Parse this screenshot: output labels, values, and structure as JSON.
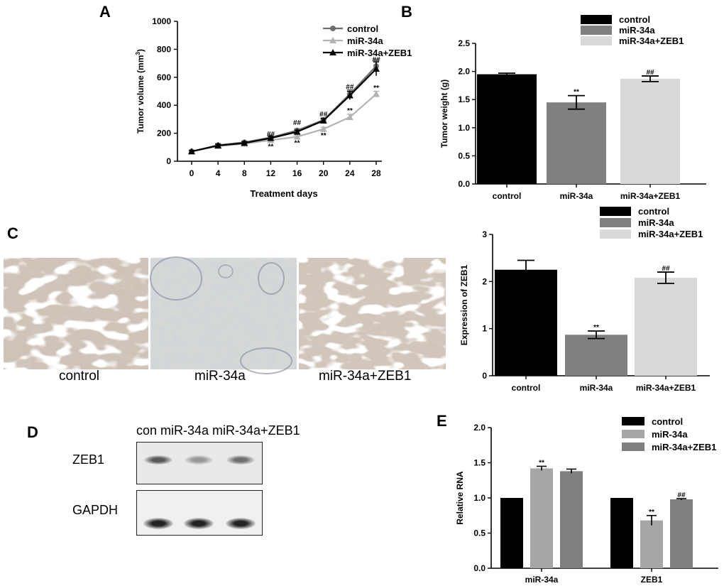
{
  "panels": {
    "a": "A",
    "b": "B",
    "c": "C",
    "d": "D",
    "e": "E"
  },
  "colors": {
    "control_line": "#6e6e6e",
    "mir_line": "#b3b3b3",
    "zeb_line": "#000000",
    "bar_control": "#000000",
    "bar_mir": "#808080",
    "bar_zeb": "#d9d9d9",
    "e_mir": "#a6a6a6",
    "e_zeb": "#7f7f7f"
  },
  "ihc": {
    "captions": [
      "control",
      "miR-34a",
      "miR-34a+ZEB1"
    ]
  },
  "blot": {
    "header": "con miR-34a miR-34a+ZEB1",
    "rows": [
      "ZEB1",
      "GAPDH"
    ],
    "zeb1_intensity": [
      1.0,
      0.45,
      0.8
    ],
    "gapdh_intensity": [
      1.0,
      1.0,
      1.0
    ]
  },
  "chart_data": [
    {
      "panel": "A",
      "type": "line",
      "xlabel": "Treatment days",
      "ylabel": "Tumor volume (mm3)",
      "ylabel_main": "Tumor volume (mm",
      "ylabel_sup": "3",
      "ylabel_close": ")",
      "x": [
        0,
        4,
        8,
        12,
        16,
        20,
        24,
        28
      ],
      "xticks": [
        "0",
        "4",
        "8",
        "12",
        "16",
        "20",
        "24",
        "28"
      ],
      "ylim": [
        0,
        1000
      ],
      "yticks": [
        "0",
        "200",
        "400",
        "600",
        "800",
        "1000"
      ],
      "legend": "top-right",
      "series": [
        {
          "name": "control",
          "marker": "circle",
          "values": [
            70,
            115,
            135,
            170,
            220,
            295,
            480,
            680
          ],
          "err": [
            8,
            10,
            10,
            12,
            12,
            15,
            30,
            45
          ]
        },
        {
          "name": "miR-34a",
          "marker": "triangle",
          "values": [
            70,
            108,
            125,
            150,
            175,
            230,
            315,
            480
          ],
          "err": [
            8,
            8,
            10,
            10,
            10,
            12,
            20,
            20
          ]
        },
        {
          "name": "miR-34a+ZEB1",
          "marker": "triangle",
          "values": [
            70,
            112,
            130,
            165,
            210,
            290,
            470,
            660
          ],
          "err": [
            8,
            10,
            10,
            12,
            12,
            15,
            30,
            50
          ]
        }
      ],
      "annotations": [
        {
          "text": "##",
          "x": 12,
          "y": 198
        },
        {
          "text": "##",
          "x": 16,
          "y": 280
        },
        {
          "text": "##",
          "x": 20,
          "y": 340
        },
        {
          "text": "##",
          "x": 24,
          "y": 535
        },
        {
          "text": "##",
          "x": 28,
          "y": 730
        },
        {
          "text": "**",
          "x": 12,
          "y": 108
        },
        {
          "text": "**",
          "x": 16,
          "y": 135
        },
        {
          "text": "**",
          "x": 20,
          "y": 188
        },
        {
          "text": "**",
          "x": 24,
          "y": 365
        },
        {
          "text": "**",
          "x": 28,
          "y": 528
        }
      ]
    },
    {
      "panel": "B",
      "type": "bar",
      "ylabel": "Tumor weight (g)",
      "categories": [
        "control",
        "miR-34a",
        "miR-34a+ZEB1"
      ],
      "values": [
        1.95,
        1.45,
        1.87
      ],
      "err": [
        0.02,
        0.12,
        0.05
      ],
      "ylim": [
        0,
        2.5
      ],
      "yticks": [
        "0.0",
        "0.5",
        "1.0",
        "1.5",
        "2.0",
        "2.5"
      ],
      "legend": "top-right",
      "legend_entries": [
        "control",
        "miR-34a",
        "miR-34a+ZEB1"
      ],
      "annotations": [
        "",
        "**",
        "##"
      ]
    },
    {
      "panel": "C",
      "type": "bar",
      "ylabel": "Expression of ZEB1",
      "categories": [
        "control",
        "miR-34a",
        "miR-34a+ZEB1"
      ],
      "values": [
        2.25,
        0.87,
        2.08
      ],
      "err": [
        0.2,
        0.08,
        0.12
      ],
      "ylim": [
        0,
        3
      ],
      "yticks": [
        "0",
        "1",
        "2",
        "3"
      ],
      "legend": "top-right",
      "legend_entries": [
        "control",
        "miR-34a",
        "miR-34a+ZEB1"
      ],
      "annotations": [
        "",
        "**",
        "##"
      ]
    },
    {
      "panel": "E",
      "type": "bar",
      "ylabel": "Relative RNA",
      "categories": [
        "miR-34a",
        "ZEB1"
      ],
      "ylim": [
        0,
        2.0
      ],
      "yticks": [
        "0.0",
        "0.5",
        "1.0",
        "1.5",
        "2.0"
      ],
      "legend": "top-right",
      "series": [
        {
          "name": "control",
          "values": [
            1.0,
            1.0
          ],
          "err": [
            0,
            0
          ],
          "annotations": [
            "",
            ""
          ]
        },
        {
          "name": "miR-34a",
          "values": [
            1.42,
            0.68
          ],
          "err": [
            0.03,
            0.07
          ],
          "annotations": [
            "**",
            "**"
          ]
        },
        {
          "name": "miR-34a+ZEB1",
          "values": [
            1.38,
            0.98
          ],
          "err": [
            0.03,
            0.01
          ],
          "annotations": [
            "",
            "##"
          ]
        }
      ]
    }
  ]
}
